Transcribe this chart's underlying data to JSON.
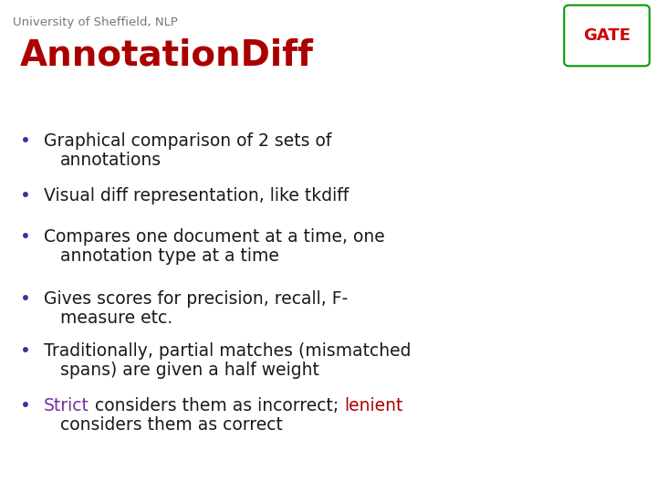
{
  "bg_color": "#ffffff",
  "header_text": "University of Sheffield, NLP",
  "header_color": "#777777",
  "header_fontsize": 9.5,
  "title_text": "AnnotationDiff",
  "title_color": "#aa0000",
  "title_fontsize": 28,
  "bullet_fontsize": 13.5,
  "bullet_color": "#1a1a1a",
  "bullet_dot_color": "#333399",
  "bullets": [
    {
      "segments": [
        {
          "text": "Graphical comparison of 2 sets of\nannotations",
          "color": "#1a1a1a"
        }
      ]
    },
    {
      "segments": [
        {
          "text": "Visual diff representation, like tkdiff",
          "color": "#1a1a1a"
        }
      ]
    },
    {
      "segments": [
        {
          "text": "Compares one document at a time, one\nannotation type at a time",
          "color": "#1a1a1a"
        }
      ]
    },
    {
      "segments": [
        {
          "text": "Gives scores for precision, recall, F-\nmeasure etc.",
          "color": "#1a1a1a"
        }
      ]
    },
    {
      "segments": [
        {
          "text": "Traditionally, partial matches (mismatched\nspans) are given a half weight",
          "color": "#1a1a1a"
        }
      ]
    },
    {
      "segments": [
        {
          "text": "Strict",
          "color": "#7b2d9e"
        },
        {
          "text": " considers them as incorrect; ",
          "color": "#1a1a1a"
        },
        {
          "text": "lenient",
          "color": "#aa0000"
        },
        {
          "text": "\nconsiders them as correct",
          "color": "#1a1a1a"
        }
      ]
    }
  ],
  "gate_box_color": "#cc0000",
  "gate_outline_color": "#009900"
}
